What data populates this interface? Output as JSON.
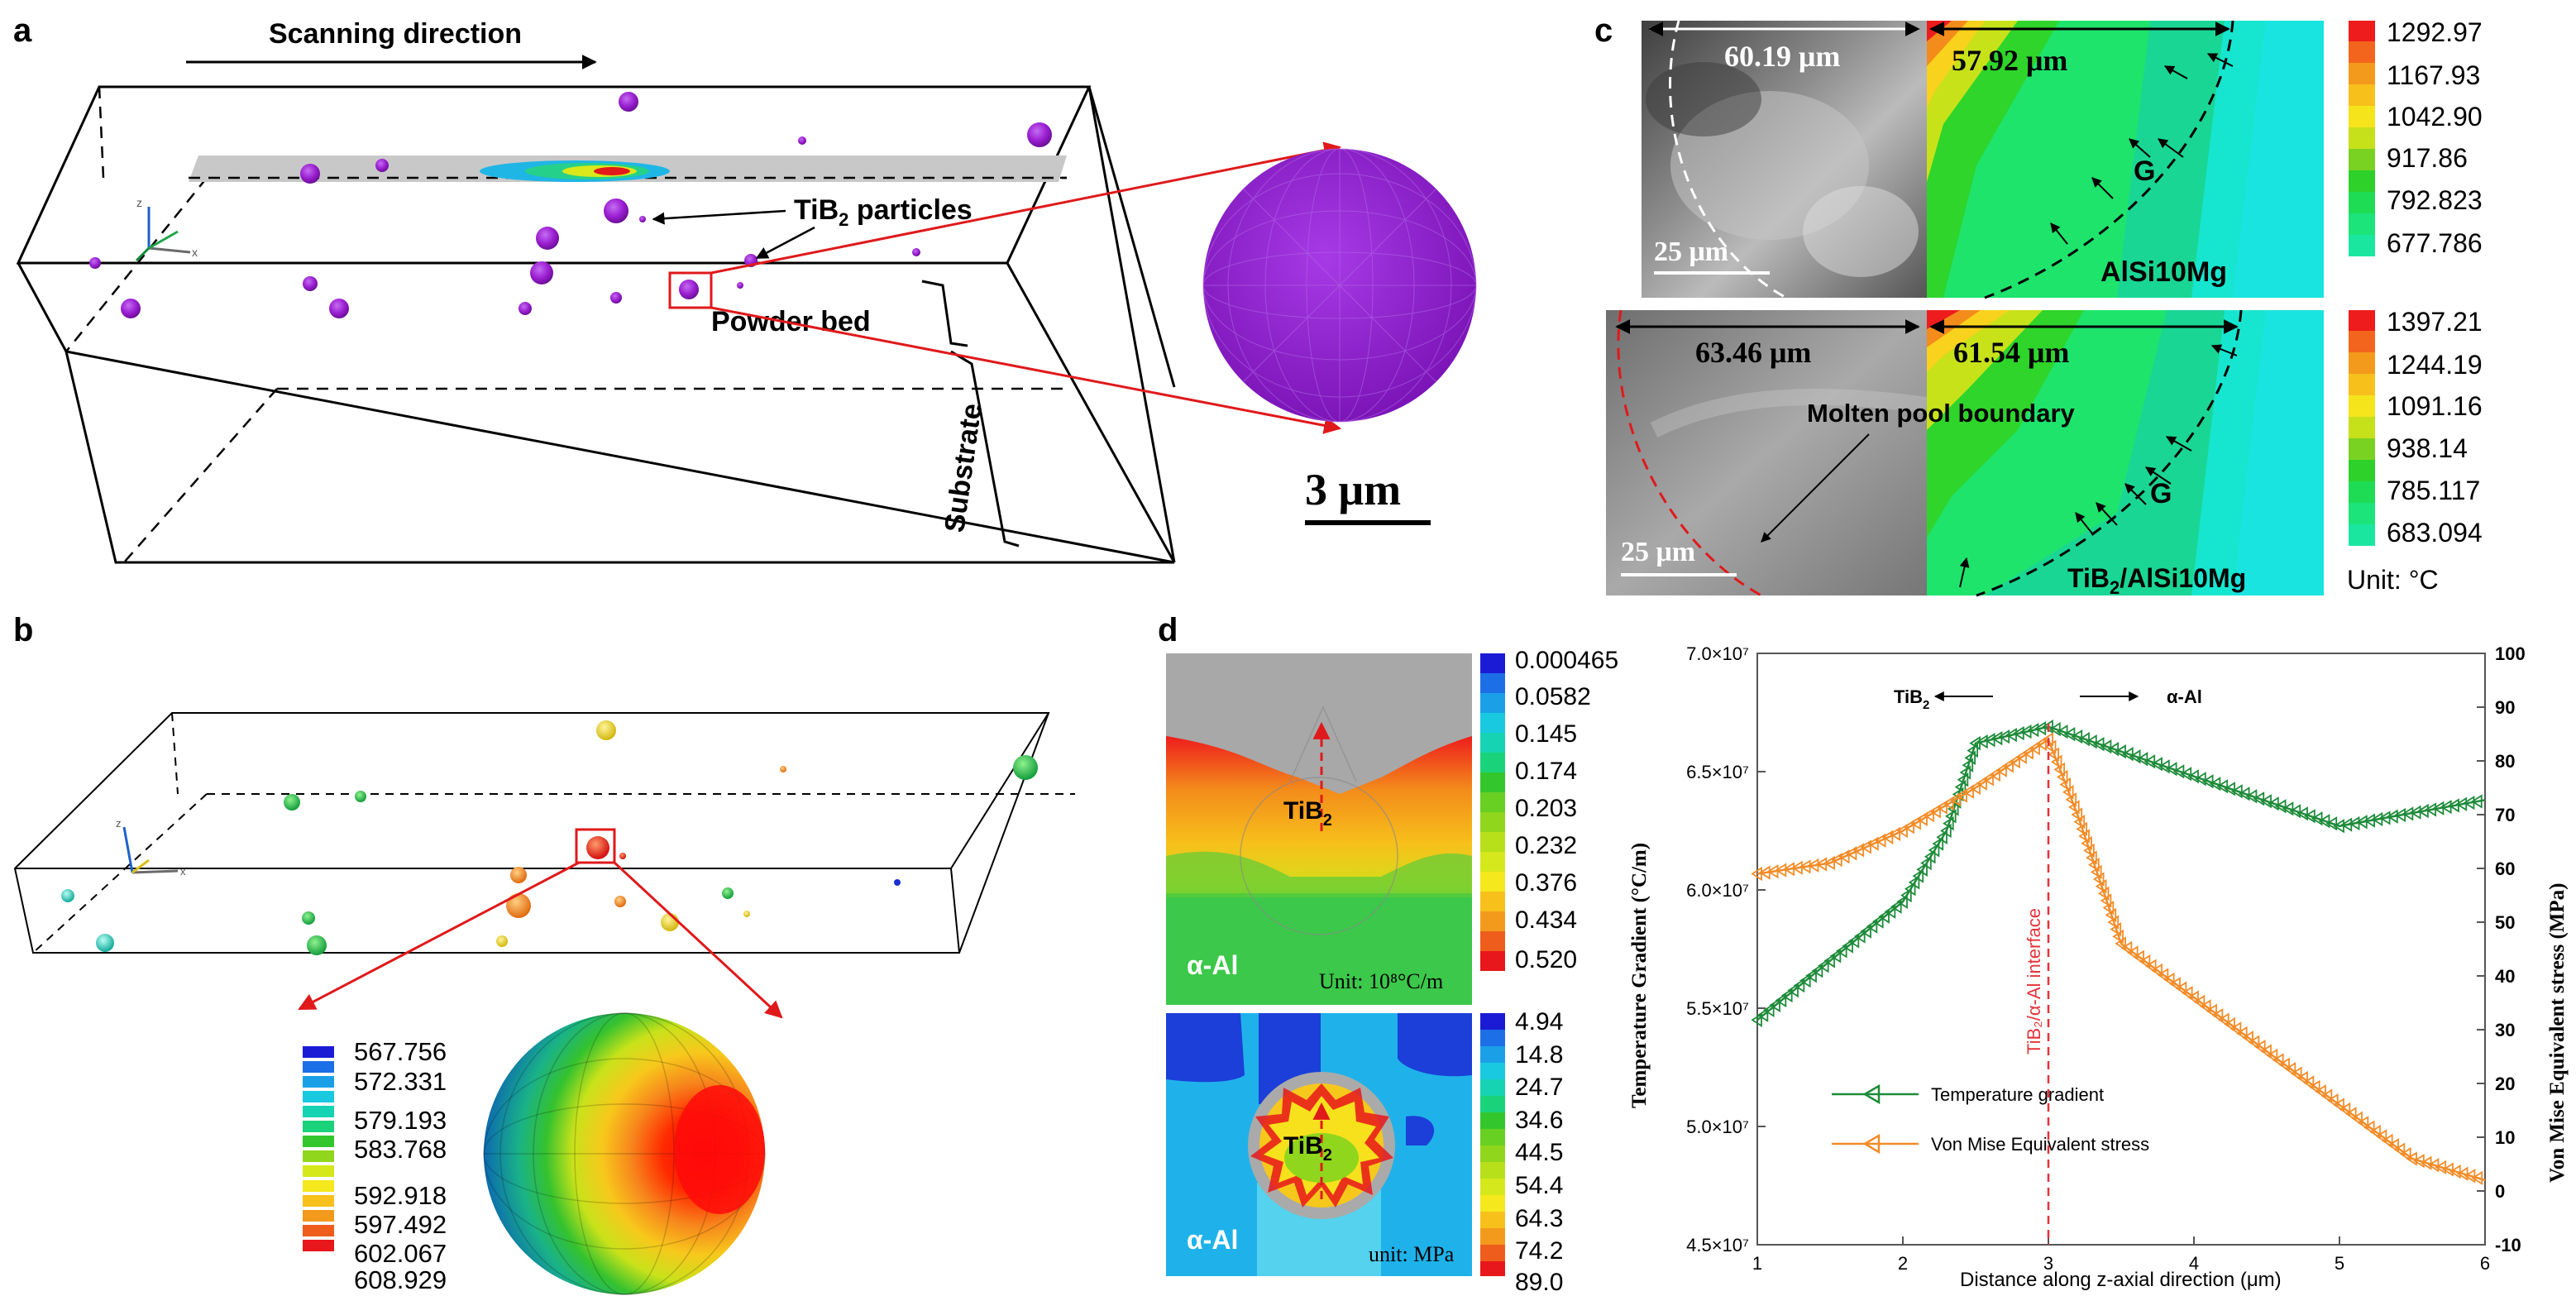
{
  "panel_labels": {
    "a": "a",
    "b": "b",
    "c": "c",
    "d": "d"
  },
  "panel_a": {
    "scan_direction": "Scanning direction",
    "tib2_particles": "TiB",
    "tib2_sub": "2",
    "tib2_suffix": " particles",
    "powder_bed": "Powder bed",
    "substrate": "Substrate",
    "scale_bar": "3 μm",
    "axis_z": "z",
    "axis_x": "x"
  },
  "panel_b": {
    "legend_values": [
      "567.756",
      "572.331",
      "579.193",
      "583.768",
      "592.918",
      "597.492",
      "602.067",
      "608.929"
    ],
    "axis_z": "z",
    "axis_x": "x"
  },
  "panel_c": {
    "top": {
      "width_left": "60.19 μm",
      "width_right": "57.92 μm",
      "scale": "25 μm",
      "material": "AlSi10Mg",
      "g_label": "G",
      "legend": [
        "1292.97",
        "1167.93",
        "1042.90",
        "917.86",
        "792.823",
        "677.786"
      ]
    },
    "bottom": {
      "width_left": "63.46 μm",
      "width_right": "61.54 μm",
      "scale": "25 μm",
      "boundary_label": "Molten pool boundary",
      "material_prefix": "TiB",
      "material_sub": "2",
      "material_suffix": "/AlSi10Mg",
      "g_label": "G",
      "legend": [
        "1397.21",
        "1244.19",
        "1091.16",
        "938.14",
        "785.117",
        "683.094"
      ],
      "unit": "Unit: °C"
    }
  },
  "panel_d": {
    "top_map": {
      "tib2": "TiB",
      "tib2_sub": "2",
      "alpha_al": "α-Al",
      "unit": "Unit: 10⁸°C/m",
      "legend": [
        "0.000465",
        "0.0582",
        "0.145",
        "0.174",
        "0.203",
        "0.232",
        "0.376",
        "0.434",
        "0.520"
      ]
    },
    "bottom_map": {
      "tib2": "TiB",
      "tib2_sub": "2",
      "alpha_al": "α-Al",
      "unit": "unit: MPa",
      "legend": [
        "4.94",
        "14.8",
        "24.7",
        "34.6",
        "44.5",
        "54.4",
        "64.3",
        "74.2",
        "89.0"
      ]
    }
  },
  "colors": {
    "tib2_purple": "#9b1fd1",
    "scan_red": "#e0191b",
    "green_series": "#1e8b3a",
    "orange_series": "#f28c28",
    "interface_line": "#e5333a"
  },
  "chart_data": {
    "type": "line",
    "title": "",
    "xlabel": "Distance along z-axial direction (μm)",
    "ylabel": "Temperature Gradient (°C/m)",
    "y2label": "Von Mise Equivalent stress (MPa)",
    "xlim": [
      1,
      6
    ],
    "ylim": [
      45000000,
      70000000
    ],
    "y2lim": [
      -10,
      100
    ],
    "x_ticks": [
      "1",
      "2",
      "3",
      "4",
      "5",
      "6"
    ],
    "y_ticks": [
      "4.5×10⁷",
      "5.0×10⁷",
      "5.5×10⁷",
      "6.0×10⁷",
      "6.5×10⁷",
      "7.0×10⁷"
    ],
    "y2_ticks": [
      "-10",
      "0",
      "10",
      "20",
      "30",
      "40",
      "50",
      "60",
      "70",
      "80",
      "90",
      "100"
    ],
    "interface_label": "TiB₂/α-Al interface",
    "interface_x": 3,
    "annot_left": "TiB",
    "annot_left_sub": "2",
    "annot_right": "α-Al",
    "legend": [
      "Temperature gradient",
      "Von Mise Equivalent stress"
    ],
    "series": [
      {
        "name": "Temperature gradient",
        "axis": "left",
        "x": [
          1,
          1.5,
          2,
          2.3,
          2.5,
          3,
          4,
          5,
          6
        ],
        "y": [
          54500000,
          57000000,
          59500000,
          62500000,
          66200000,
          66900000,
          64800000,
          62700000,
          63800000
        ]
      },
      {
        "name": "Von Mise Equivalent stress",
        "axis": "right",
        "x": [
          1,
          1.5,
          2,
          2.5,
          3,
          3.2,
          3.5,
          4,
          5,
          5.5,
          6
        ],
        "y": [
          59,
          61,
          67,
          75,
          84,
          70,
          46,
          36,
          16,
          6,
          2
        ]
      }
    ]
  }
}
